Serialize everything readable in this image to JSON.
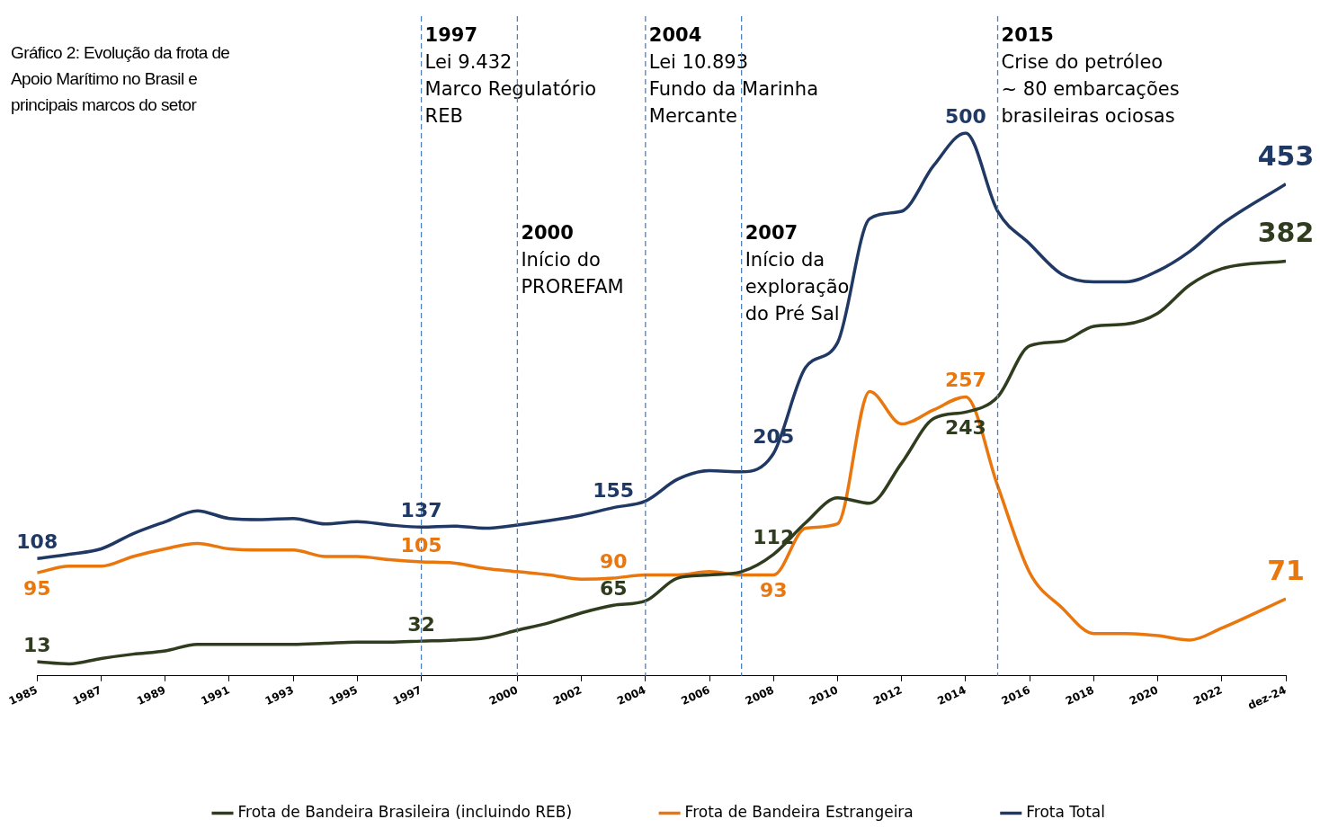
{
  "chart_data": {
    "type": "line",
    "title": "Gráfico 2: Evolução da frota de Apoio Marítimo no Brasil e principais marcos do setor",
    "x": [
      1985,
      1986,
      1987,
      1988,
      1989,
      1990,
      1991,
      1992,
      1993,
      1994,
      1995,
      1996,
      1997,
      1998,
      1999,
      2000,
      2001,
      2002,
      2003,
      2004,
      2005,
      2006,
      2007,
      2008,
      2009,
      2010,
      2011,
      2012,
      2013,
      2014,
      2015,
      2016,
      2017,
      2018,
      2019,
      2020,
      2021,
      2022,
      2024
    ],
    "series": [
      {
        "name": "Frota de Bandeira Brasileira (incluindo REB)",
        "color": "#2f3d1e",
        "values": [
          13,
          11,
          16,
          20,
          23,
          29,
          29,
          29,
          29,
          30,
          31,
          31,
          32,
          33,
          35,
          42,
          49,
          58,
          65,
          69,
          90,
          93,
          96,
          112,
          141,
          164,
          159,
          196,
          237,
          243,
          257,
          304,
          308,
          322,
          324,
          334,
          360,
          375,
          382
        ],
        "value_labels": [
          "13",
          null,
          null,
          null,
          null,
          null,
          null,
          null,
          null,
          null,
          null,
          null,
          "32",
          null,
          null,
          null,
          null,
          null,
          "65",
          null,
          null,
          null,
          null,
          "112",
          null,
          null,
          null,
          null,
          null,
          "243",
          null,
          null,
          null,
          null,
          null,
          null,
          null,
          null,
          "382"
        ]
      },
      {
        "name": "Frota de Bandeira Estrangeira",
        "color": "#e9770e",
        "values": [
          95,
          101,
          101,
          110,
          117,
          122,
          117,
          116,
          116,
          110,
          110,
          107,
          105,
          104,
          99,
          96,
          93,
          89,
          90,
          93,
          93,
          96,
          93,
          93,
          136,
          140,
          262,
          232,
          245,
          257,
          175,
          95,
          63,
          39,
          39,
          37,
          33,
          44,
          71
        ],
        "value_labels": [
          "95",
          null,
          null,
          null,
          null,
          null,
          null,
          null,
          null,
          null,
          null,
          null,
          "105",
          null,
          null,
          null,
          null,
          null,
          "90",
          null,
          null,
          null,
          null,
          "93",
          null,
          null,
          null,
          null,
          null,
          "257",
          null,
          null,
          null,
          null,
          null,
          null,
          null,
          null,
          "71"
        ]
      },
      {
        "name": "Frota Total",
        "color": "#1f3864",
        "values": [
          108,
          112,
          117,
          131,
          142,
          152,
          145,
          144,
          145,
          140,
          142,
          139,
          137,
          138,
          136,
          139,
          143,
          148,
          155,
          161,
          181,
          189,
          188,
          205,
          284,
          307,
          421,
          428,
          470,
          500,
          428,
          398,
          370,
          363,
          363,
          373,
          391,
          416,
          453
        ],
        "value_labels": [
          "108",
          null,
          null,
          null,
          null,
          null,
          null,
          null,
          null,
          null,
          null,
          null,
          "137",
          null,
          null,
          null,
          null,
          null,
          "155",
          null,
          null,
          null,
          null,
          "205",
          null,
          null,
          null,
          null,
          null,
          "500",
          null,
          null,
          null,
          null,
          null,
          null,
          null,
          null,
          "453"
        ]
      }
    ],
    "xlim": [
      1985,
      2024
    ],
    "xticks": [
      1985,
      1987,
      1989,
      1991,
      1993,
      1995,
      1997,
      2000,
      2002,
      2004,
      2006,
      2008,
      2010,
      2012,
      2014,
      2016,
      2018,
      2020,
      2022,
      {
        "value": 2024,
        "label": "dez-24"
      }
    ],
    "tick_labels": "x",
    "grid": false,
    "legend": "bottom",
    "marker": "none",
    "line_style": "solid",
    "ref_lines": [
      {
        "axis": "x",
        "value": 1997,
        "label": "1997\nLei 9.432\nMarco Regulatório\nREB",
        "color": "#4f81bd",
        "line_style": "dashed"
      },
      {
        "axis": "x",
        "value": 2000,
        "label": "2000\nInício do\nPROREFAM",
        "color": "#4f81bd",
        "line_style": "dashed"
      },
      {
        "axis": "x",
        "value": 2004,
        "label": "2004\nLei 10.893\nFundo da Marinha\nMercante",
        "color": "#4f81bd",
        "line_style": "dashed"
      },
      {
        "axis": "x",
        "value": 2007,
        "label": "2007\nInício da\nexploração\ndo Pré Sal",
        "color": "#4f81bd",
        "line_style": "dashed"
      },
      {
        "axis": "x",
        "value": 2015,
        "label": "2015\nCrise do petróleo\n~ 80 embarcações\nbrasileiras ociosas",
        "color": "#4f81bd",
        "line_style": "dashed"
      }
    ]
  }
}
